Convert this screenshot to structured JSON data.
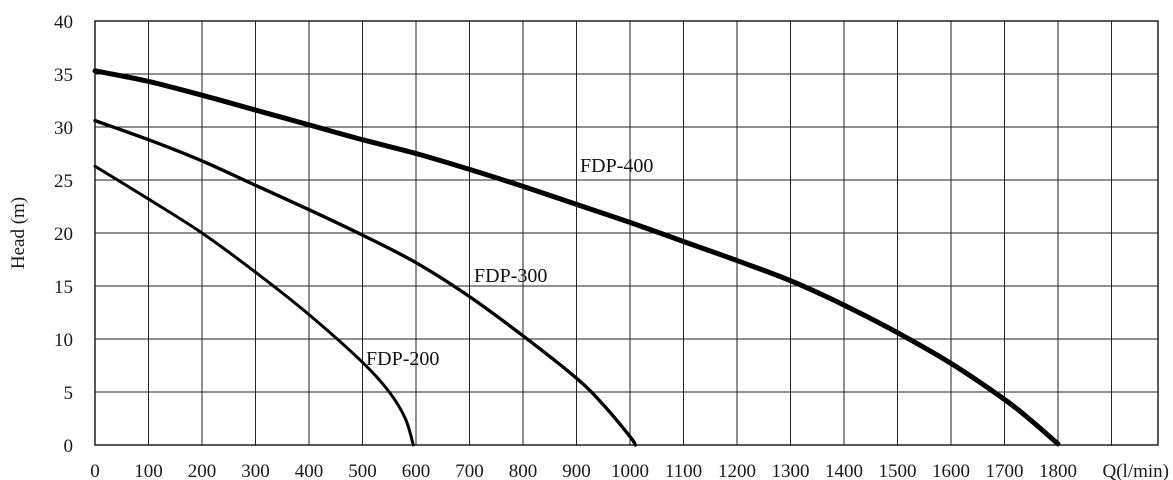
{
  "chart_data": {
    "type": "line",
    "title": "",
    "xlabel": "Q(l/min)",
    "ylabel": "Head (m)",
    "xlim": [
      0,
      1800
    ],
    "ylim": [
      0,
      40
    ],
    "x_ticks": [
      0,
      100,
      200,
      300,
      400,
      500,
      600,
      700,
      800,
      900,
      1000,
      1100,
      1200,
      1300,
      1400,
      1500,
      1600,
      1700,
      1800
    ],
    "y_ticks": [
      0,
      5,
      10,
      15,
      20,
      25,
      30,
      35,
      40
    ],
    "grid": true,
    "legend": "none",
    "series": [
      {
        "name": "FDP-200",
        "label": "FDP-200",
        "color": "#000000",
        "points": [
          [
            0,
            26.3
          ],
          [
            100,
            23.2
          ],
          [
            200,
            20.0
          ],
          [
            300,
            16.3
          ],
          [
            400,
            12.3
          ],
          [
            500,
            7.8
          ],
          [
            550,
            5.0
          ],
          [
            580,
            2.5
          ],
          [
            595,
            0
          ]
        ]
      },
      {
        "name": "FDP-300",
        "label": "FDP-300",
        "color": "#000000",
        "points": [
          [
            0,
            30.6
          ],
          [
            100,
            28.8
          ],
          [
            200,
            26.8
          ],
          [
            300,
            24.5
          ],
          [
            400,
            22.2
          ],
          [
            500,
            19.8
          ],
          [
            600,
            17.2
          ],
          [
            700,
            14.0
          ],
          [
            800,
            10.3
          ],
          [
            900,
            6.3
          ],
          [
            950,
            3.8
          ],
          [
            1000,
            0.8
          ],
          [
            1010,
            0
          ]
        ]
      },
      {
        "name": "FDP-400",
        "label": "FDP-400",
        "color": "#000000",
        "points": [
          [
            0,
            35.3
          ],
          [
            100,
            34.3
          ],
          [
            200,
            33.0
          ],
          [
            300,
            31.6
          ],
          [
            400,
            30.2
          ],
          [
            500,
            28.8
          ],
          [
            600,
            27.5
          ],
          [
            700,
            26.0
          ],
          [
            800,
            24.4
          ],
          [
            900,
            22.7
          ],
          [
            1000,
            21.0
          ],
          [
            1100,
            19.2
          ],
          [
            1200,
            17.4
          ],
          [
            1300,
            15.5
          ],
          [
            1400,
            13.2
          ],
          [
            1500,
            10.6
          ],
          [
            1600,
            7.7
          ],
          [
            1700,
            4.3
          ],
          [
            1750,
            2.3
          ],
          [
            1800,
            0.1
          ]
        ]
      }
    ]
  }
}
